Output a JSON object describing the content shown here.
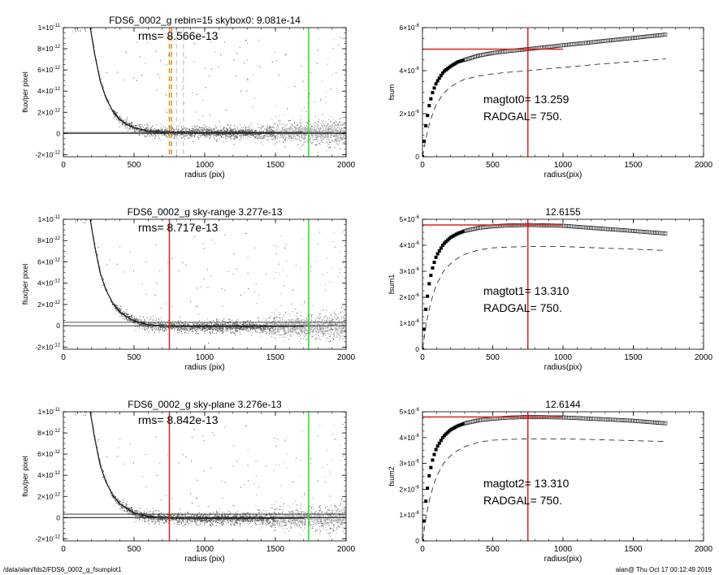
{
  "footer": {
    "path": "/data/alan/fds2/FDS6_0002_g_fsumplot1",
    "stamp": "alan@  Thu Oct 17 00:12:49 2019"
  },
  "chart_data": [
    {
      "type": "scatter",
      "title": "FDS6_0002_g rebin=15    skybox0:  9.081e-14",
      "annotations": [
        "rms= 8.566e-13"
      ],
      "xlabel": "radius (pix)",
      "ylabel": "flux/per pixel",
      "xlim": [
        0,
        2000
      ],
      "ylim": [
        -2.2e-12,
        1e-11
      ],
      "x_ticks": [
        0,
        500,
        1000,
        1500,
        2000
      ],
      "x_tick_labels": [
        "0",
        "500",
        "1000",
        "1500",
        "2000"
      ],
      "y_ticks": [
        -2e-12,
        0,
        2e-12,
        4e-12,
        6e-12,
        8e-12,
        1e-11
      ],
      "y_tick_labels": [
        {
          "m": "-2×10",
          "e": "-12"
        },
        {
          "m": "0",
          "e": ""
        },
        {
          "m": "2×10",
          "e": "-12"
        },
        {
          "m": "4×10",
          "e": "-12"
        },
        {
          "m": "6×10",
          "e": "-12"
        },
        {
          "m": "8×10",
          "e": "-12"
        },
        {
          "m": "1×10",
          "e": "-11"
        }
      ],
      "profile": {
        "r": [
          190,
          220,
          260,
          300,
          350,
          400,
          450,
          500,
          600,
          700,
          800,
          1000,
          1300,
          1700
        ],
        "flux": [
          1e-11,
          7.6e-12,
          5e-12,
          3.4e-12,
          2.1e-12,
          1.3e-12,
          8.5e-13,
          5.4e-13,
          2.4e-13,
          1.4e-13,
          1.1e-13,
          9.5e-14,
          9.1e-14,
          9.1e-14
        ]
      },
      "sky_levels": [
        9.081e-14
      ],
      "vlines": [
        {
          "x": 750,
          "color": "#e08a1e",
          "style": "dashed"
        },
        {
          "x": 765,
          "color": "#e08a1e",
          "style": "dashed"
        },
        {
          "x": 800,
          "color": "#aaaaaa",
          "style": "dashed"
        },
        {
          "x": 850,
          "color": "#aaaaaa",
          "style": "dashed"
        },
        {
          "x": 1735,
          "color": "#22dd22",
          "style": "solid"
        }
      ]
    },
    {
      "type": "line",
      "title": "",
      "annotations": [
        "magtot0=  13.259",
        "RADGAL=    750."
      ],
      "xlabel": "radius(pix)",
      "ylabel": "fsum",
      "xlim": [
        0,
        2000
      ],
      "ylim": [
        0,
        6e-06
      ],
      "x_ticks": [
        0,
        500,
        1000,
        1500,
        2000
      ],
      "x_tick_labels": [
        "0",
        "500",
        "1000",
        "1500",
        "2000"
      ],
      "y_ticks": [
        0,
        2e-06,
        4e-06,
        6e-06
      ],
      "y_tick_labels": [
        {
          "m": "0",
          "e": ""
        },
        {
          "m": "2×10",
          "e": "-6"
        },
        {
          "m": "4×10",
          "e": "-6"
        },
        {
          "m": "6×10",
          "e": "-6"
        }
      ],
      "series": [
        {
          "style": "squares",
          "x": [
            0,
            25,
            50,
            75,
            100,
            150,
            200,
            250,
            300,
            400,
            500,
            600,
            750,
            1000,
            1250,
            1500,
            1735
          ],
          "y": [
            0,
            1.5e-06,
            2.45e-06,
            3.05e-06,
            3.45e-06,
            3.95e-06,
            4.2e-06,
            4.4e-06,
            4.5e-06,
            4.7e-06,
            4.82e-06,
            4.9e-06,
            5e-06,
            5.18e-06,
            5.35e-06,
            5.52e-06,
            5.68e-06
          ]
        },
        {
          "style": "dashed",
          "x": [
            0,
            25,
            50,
            75,
            100,
            150,
            200,
            250,
            300,
            400,
            500,
            600,
            750,
            1000,
            1250,
            1500,
            1735
          ],
          "y": [
            0,
            8.5e-07,
            1.55e-06,
            2.05e-06,
            2.45e-06,
            2.95e-06,
            3.25e-06,
            3.45e-06,
            3.6e-06,
            3.75e-06,
            3.85e-06,
            3.92e-06,
            4e-06,
            4.15e-06,
            4.3e-06,
            4.42e-06,
            4.55e-06
          ]
        }
      ],
      "vlines": [
        {
          "x": 750,
          "color": "#dd2222"
        }
      ],
      "hlines": [
        {
          "y": 5e-06,
          "x0": 0,
          "x1": 1000,
          "color": "#dd2222"
        }
      ]
    },
    {
      "type": "scatter",
      "title": "FDS6_0002_g sky-range  3.277e-13",
      "annotations": [
        "rms= 8.717e-13"
      ],
      "xlabel": "radius (pix)",
      "ylabel": "flux/per pixel",
      "xlim": [
        0,
        2000
      ],
      "ylim": [
        -2.2e-12,
        1e-11
      ],
      "x_ticks": [
        0,
        500,
        1000,
        1500,
        2000
      ],
      "x_tick_labels": [
        "0",
        "500",
        "1000",
        "1500",
        "2000"
      ],
      "y_ticks": [
        -2e-12,
        0,
        2e-12,
        4e-12,
        6e-12,
        8e-12,
        1e-11
      ],
      "y_tick_labels": [
        {
          "m": "-2×10",
          "e": "-12"
        },
        {
          "m": "0",
          "e": ""
        },
        {
          "m": "2×10",
          "e": "-12"
        },
        {
          "m": "4×10",
          "e": "-12"
        },
        {
          "m": "6×10",
          "e": "-12"
        },
        {
          "m": "8×10",
          "e": "-12"
        },
        {
          "m": "1×10",
          "e": "-11"
        }
      ],
      "profile": {
        "r": [
          190,
          220,
          260,
          300,
          350,
          400,
          450,
          500,
          600,
          700,
          800,
          1000,
          1300,
          1700
        ],
        "flux": [
          1e-11,
          7.6e-12,
          5e-12,
          3.4e-12,
          2.1e-12,
          1.3e-12,
          8.5e-13,
          4.6e-13,
          1e-13,
          0,
          -5e-14,
          -5e-14,
          -5e-14,
          -5e-14
        ]
      },
      "sky_levels": [
        0,
        3.277e-13
      ],
      "vlines": [
        {
          "x": 750,
          "color": "#dd2222",
          "style": "solid"
        },
        {
          "x": 1735,
          "color": "#22dd22",
          "style": "solid"
        }
      ]
    },
    {
      "type": "line",
      "title": "12.6155",
      "annotations": [
        "magtot1=  13.310",
        "RADGAL=    750."
      ],
      "xlabel": "radius(pix)",
      "ylabel": "fsum1",
      "xlim": [
        0,
        2000
      ],
      "ylim": [
        0,
        5e-06
      ],
      "x_ticks": [
        0,
        500,
        1000,
        1500,
        2000
      ],
      "x_tick_labels": [
        "0",
        "500",
        "1000",
        "1500",
        "2000"
      ],
      "y_ticks": [
        0,
        1e-06,
        2e-06,
        3e-06,
        4e-06,
        5e-06
      ],
      "y_tick_labels": [
        {
          "m": "0",
          "e": ""
        },
        {
          "m": "1×10",
          "e": "-6"
        },
        {
          "m": "2×10",
          "e": "-6"
        },
        {
          "m": "3×10",
          "e": "-6"
        },
        {
          "m": "4×10",
          "e": "-6"
        },
        {
          "m": "5×10",
          "e": "-6"
        }
      ],
      "series": [
        {
          "style": "squares",
          "x": [
            0,
            25,
            50,
            75,
            100,
            150,
            200,
            250,
            300,
            400,
            500,
            600,
            750,
            1000,
            1250,
            1500,
            1735
          ],
          "y": [
            0,
            1.6e-06,
            2.6e-06,
            3.2e-06,
            3.6e-06,
            4.05e-06,
            4.3e-06,
            4.45e-06,
            4.55e-06,
            4.67e-06,
            4.73e-06,
            4.76e-06,
            4.78e-06,
            4.75e-06,
            4.65e-06,
            4.55e-06,
            4.45e-06
          ]
        },
        {
          "style": "dashed",
          "x": [
            0,
            25,
            50,
            75,
            100,
            150,
            200,
            250,
            300,
            400,
            500,
            600,
            750,
            1000,
            1250,
            1500,
            1735
          ],
          "y": [
            0,
            9e-07,
            1.6e-06,
            2.1e-06,
            2.5e-06,
            3e-06,
            3.3e-06,
            3.5e-06,
            3.65e-06,
            3.82e-06,
            3.9e-06,
            3.93e-06,
            3.95e-06,
            3.95e-06,
            3.9e-06,
            3.85e-06,
            3.8e-06
          ]
        }
      ],
      "vlines": [
        {
          "x": 750,
          "color": "#dd2222"
        }
      ],
      "hlines": [
        {
          "y": 4.78e-06,
          "x0": 0,
          "x1": 1000,
          "color": "#dd2222"
        }
      ]
    },
    {
      "type": "scatter",
      "title": "FDS6_0002_g sky-plane  3.276e-13",
      "annotations": [
        "rms= 8.842e-13"
      ],
      "xlabel": "radius (pix)",
      "ylabel": "flux/per pixel",
      "xlim": [
        0,
        2000
      ],
      "ylim": [
        -2.2e-12,
        1e-11
      ],
      "x_ticks": [
        0,
        500,
        1000,
        1500,
        2000
      ],
      "x_tick_labels": [
        "0",
        "500",
        "1000",
        "1500",
        "2000"
      ],
      "y_ticks": [
        -2e-12,
        0,
        2e-12,
        4e-12,
        6e-12,
        8e-12,
        1e-11
      ],
      "y_tick_labels": [
        {
          "m": "-2×10",
          "e": "-12"
        },
        {
          "m": "0",
          "e": ""
        },
        {
          "m": "2×10",
          "e": "-12"
        },
        {
          "m": "4×10",
          "e": "-12"
        },
        {
          "m": "6×10",
          "e": "-12"
        },
        {
          "m": "8×10",
          "e": "-12"
        },
        {
          "m": "1×10",
          "e": "-11"
        }
      ],
      "profile": {
        "r": [
          190,
          220,
          260,
          300,
          350,
          400,
          450,
          500,
          600,
          700,
          800,
          1000,
          1300,
          1700
        ],
        "flux": [
          1e-11,
          7.6e-12,
          5e-12,
          3.4e-12,
          2.1e-12,
          1.3e-12,
          8.5e-13,
          4.6e-13,
          1e-13,
          0,
          -5e-14,
          -5e-14,
          -5e-14,
          -5e-14
        ]
      },
      "sky_levels": [
        0,
        3.276e-13
      ],
      "vlines": [
        {
          "x": 750,
          "color": "#dd2222",
          "style": "solid"
        },
        {
          "x": 1735,
          "color": "#22dd22",
          "style": "solid"
        }
      ]
    },
    {
      "type": "line",
      "title": "12.6144",
      "annotations": [
        "magtot2=  13.310",
        "RADGAL=    750."
      ],
      "xlabel": "radius(pix)",
      "ylabel": "fsum2",
      "xlim": [
        0,
        2000
      ],
      "ylim": [
        0,
        5e-06
      ],
      "x_ticks": [
        0,
        500,
        1000,
        1500,
        2000
      ],
      "x_tick_labels": [
        "0",
        "500",
        "1000",
        "1500",
        "2000"
      ],
      "y_ticks": [
        0,
        1e-06,
        2e-06,
        3e-06,
        4e-06,
        5e-06
      ],
      "y_tick_labels": [
        {
          "m": "0",
          "e": ""
        },
        {
          "m": "1×10",
          "e": "-6"
        },
        {
          "m": "2×10",
          "e": "-6"
        },
        {
          "m": "3×10",
          "e": "-6"
        },
        {
          "m": "4×10",
          "e": "-6"
        },
        {
          "m": "5×10",
          "e": "-6"
        }
      ],
      "series": [
        {
          "style": "squares",
          "x": [
            0,
            25,
            50,
            75,
            100,
            150,
            200,
            250,
            300,
            400,
            500,
            600,
            750,
            1000,
            1250,
            1500,
            1735
          ],
          "y": [
            0,
            1.6e-06,
            2.6e-06,
            3.2e-06,
            3.6e-06,
            4.05e-06,
            4.3e-06,
            4.45e-06,
            4.55e-06,
            4.67e-06,
            4.73e-06,
            4.77e-06,
            4.8e-06,
            4.78e-06,
            4.72e-06,
            4.65e-06,
            4.55e-06
          ]
        },
        {
          "style": "dashed",
          "x": [
            0,
            25,
            50,
            75,
            100,
            150,
            200,
            250,
            300,
            400,
            500,
            600,
            750,
            1000,
            1250,
            1500,
            1735
          ],
          "y": [
            0,
            9e-07,
            1.6e-06,
            2.1e-06,
            2.5e-06,
            3e-06,
            3.3e-06,
            3.5e-06,
            3.65e-06,
            3.82e-06,
            3.9e-06,
            3.93e-06,
            3.95e-06,
            3.95e-06,
            3.92e-06,
            3.88e-06,
            3.85e-06
          ]
        }
      ],
      "vlines": [
        {
          "x": 750,
          "color": "#dd2222"
        }
      ],
      "hlines": [
        {
          "y": 4.8e-06,
          "x0": 0,
          "x1": 1000,
          "color": "#dd2222"
        }
      ]
    }
  ]
}
